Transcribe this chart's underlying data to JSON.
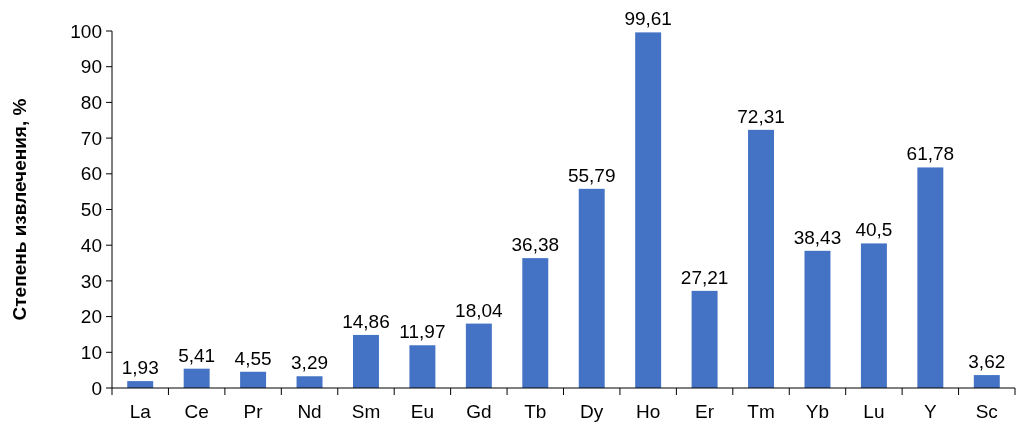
{
  "chart_data": {
    "type": "bar",
    "ylabel": "Степень извлечения, %",
    "categories": [
      "La",
      "Ce",
      "Pr",
      "Nd",
      "Sm",
      "Eu",
      "Gd",
      "Tb",
      "Dy",
      "Ho",
      "Er",
      "Tm",
      "Yb",
      "Lu",
      "Y",
      "Sc"
    ],
    "values": [
      1.93,
      5.41,
      4.55,
      3.29,
      14.86,
      11.97,
      18.04,
      36.38,
      55.79,
      99.61,
      27.21,
      72.31,
      38.43,
      40.5,
      61.78,
      3.62
    ],
    "value_labels": [
      "1,93",
      "5,41",
      "4,55",
      "3,29",
      "14,86",
      "11,97",
      "18,04",
      "36,38",
      "55,79",
      "99,61",
      "27,21",
      "72,31",
      "38,43",
      "40,5",
      "61,78",
      "3,62"
    ],
    "color": "#4472c4",
    "ylim": [
      0,
      100
    ],
    "yticks": [
      0,
      10,
      20,
      30,
      40,
      50,
      60,
      70,
      80,
      90,
      100
    ]
  }
}
